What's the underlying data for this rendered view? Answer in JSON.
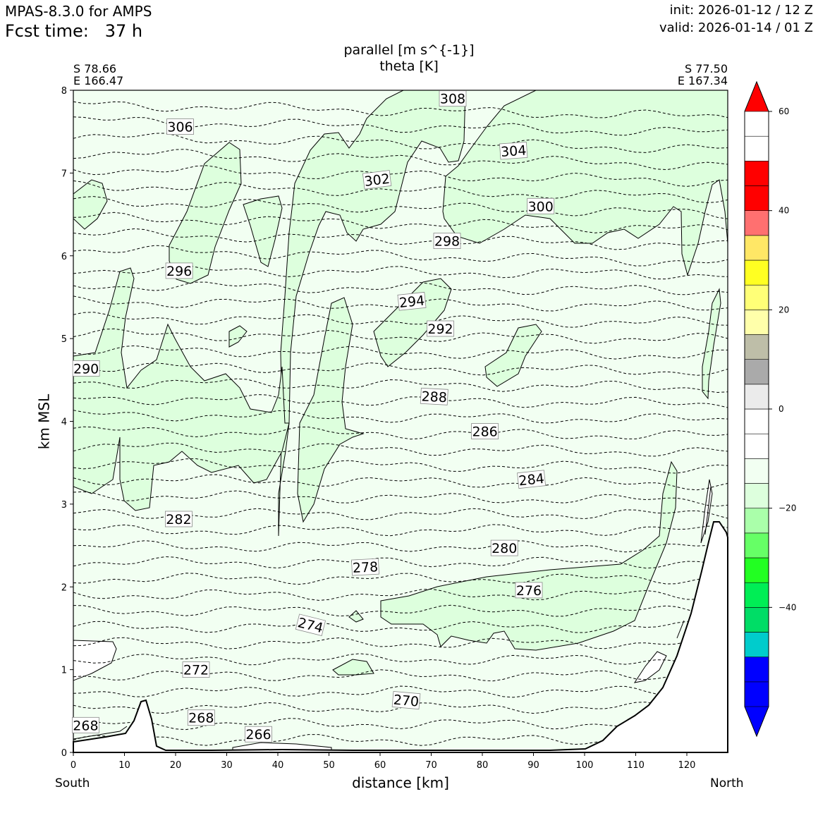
{
  "header": {
    "model": "MPAS-8.3.0 for AMPS",
    "fcst": "Fcst time:   37 h",
    "init": "init: 2026-01-12 / 12 Z",
    "valid": "valid: 2026-01-14 / 01 Z",
    "field1": "parallel [m s^{-1}]",
    "field2": "theta [K]"
  },
  "corners": {
    "left_lat": "S 78.66",
    "left_lon": "E 166.47",
    "right_lat": "S 77.50",
    "right_lon": "E 167.34"
  },
  "ends": {
    "left": "South",
    "right": "North"
  },
  "chart_data": {
    "type": "contour-cross-section",
    "title": "parallel [m s^{-1}]  theta [K]",
    "xlabel": "distance [km]",
    "ylabel": "km MSL",
    "xlim": [
      0,
      128
    ],
    "ylim": [
      0,
      8
    ],
    "xticks": [
      0,
      10,
      20,
      30,
      40,
      50,
      60,
      70,
      80,
      90,
      100,
      110,
      120
    ],
    "yticks": [
      0,
      1,
      2,
      3,
      4,
      5,
      6,
      7,
      8
    ],
    "colorbar": {
      "range": [
        -60,
        60
      ],
      "step": 5,
      "ticks": [
        -40,
        -20,
        0,
        20,
        40,
        60
      ],
      "colors": [
        "#0000ff",
        "#0000ff",
        "#0000ff",
        "#00cccc",
        "#00dd66",
        "#00ee55",
        "#22ff22",
        "#66ff66",
        "#aaffaa",
        "#ddffdd",
        "#f2fff2",
        "#ffffff",
        "#ffffff",
        "#ebebeb",
        "#aaaaaa",
        "#bebea8",
        "#ffffaa",
        "#ffff77",
        "#ffff22",
        "#ffe766",
        "#ff7070",
        "#ff0000",
        "#ff0000"
      ]
    },
    "theta_labels": [
      {
        "value": "308",
        "x": 74.2,
        "y": 7.9,
        "rot": 0
      },
      {
        "value": "306",
        "x": 20.9,
        "y": 7.56,
        "rot": 0
      },
      {
        "value": "304",
        "x": 86.1,
        "y": 7.27,
        "rot": -4
      },
      {
        "value": "302",
        "x": 59.4,
        "y": 6.92,
        "rot": -7
      },
      {
        "value": "300",
        "x": 91.4,
        "y": 6.6,
        "rot": 0
      },
      {
        "value": "298",
        "x": 73.1,
        "y": 6.18,
        "rot": 0
      },
      {
        "value": "296",
        "x": 20.7,
        "y": 5.82,
        "rot": 0
      },
      {
        "value": "294",
        "x": 66.2,
        "y": 5.45,
        "rot": -6
      },
      {
        "value": "292",
        "x": 71.8,
        "y": 5.12,
        "rot": 0
      },
      {
        "value": "290",
        "x": 2.5,
        "y": 4.64,
        "rot": 0
      },
      {
        "value": "288",
        "x": 70.6,
        "y": 4.3,
        "rot": 3
      },
      {
        "value": "286",
        "x": 80.5,
        "y": 3.88,
        "rot": 0
      },
      {
        "value": "284",
        "x": 89.6,
        "y": 3.3,
        "rot": -6
      },
      {
        "value": "282",
        "x": 20.6,
        "y": 2.82,
        "rot": 0
      },
      {
        "value": "280",
        "x": 84.3,
        "y": 2.47,
        "rot": 0
      },
      {
        "value": "278",
        "x": 57.1,
        "y": 2.24,
        "rot": -3
      },
      {
        "value": "276",
        "x": 89.1,
        "y": 1.96,
        "rot": 0
      },
      {
        "value": "274",
        "x": 46.4,
        "y": 1.54,
        "rot": 14
      },
      {
        "value": "272",
        "x": 24.0,
        "y": 1.0,
        "rot": 0
      },
      {
        "value": "270",
        "x": 65.1,
        "y": 0.63,
        "rot": 5
      },
      {
        "value": "268",
        "x": 2.4,
        "y": 0.33,
        "rot": 0
      },
      {
        "value": "268",
        "x": 25.0,
        "y": 0.42,
        "rot": 0
      },
      {
        "value": "266",
        "x": 36.2,
        "y": 0.22,
        "rot": 0
      }
    ]
  }
}
